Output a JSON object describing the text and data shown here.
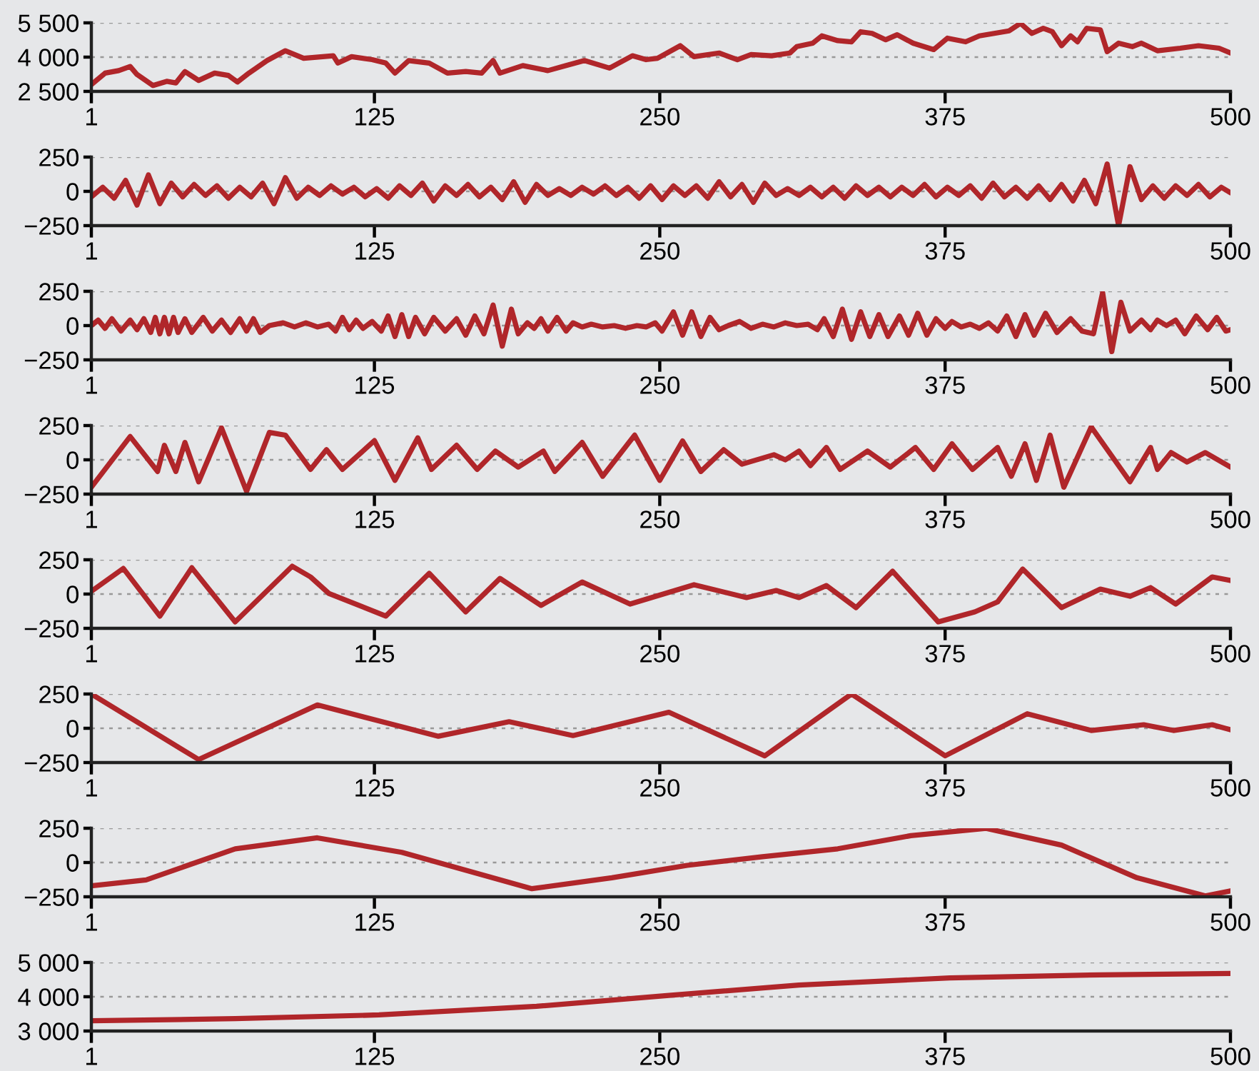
{
  "chart_data": [
    {
      "type": "line",
      "xlim": [
        1,
        500
      ],
      "xticks": [
        1,
        125,
        250,
        375,
        500
      ],
      "ylim": [
        2500,
        5500
      ],
      "yticks": [
        {
          "value": 2500,
          "label": "2 500"
        },
        {
          "value": 4000,
          "label": "4 000"
        },
        {
          "value": 5500,
          "label": "5 500"
        }
      ],
      "grid": "y",
      "line_style": "solid",
      "x": [
        1,
        7,
        13,
        18,
        21,
        28,
        34,
        38,
        42,
        48,
        55,
        61,
        65,
        70,
        78,
        86,
        94,
        107,
        109,
        115,
        124,
        130,
        134,
        140,
        149,
        157,
        165,
        172,
        177,
        180,
        190,
        201,
        209,
        217,
        228,
        238,
        244,
        249,
        259,
        265,
        276,
        284,
        290,
        299,
        307,
        310,
        317,
        321,
        328,
        334,
        338,
        343,
        349,
        354,
        361,
        370,
        376,
        384,
        390,
        403,
        408,
        413,
        418,
        422,
        426,
        430,
        433,
        437,
        443,
        446,
        451,
        457,
        461,
        468,
        478,
        486,
        495,
        500
      ],
      "series": [
        {
          "color": "#b0262a",
          "values": [
            2800,
            3300,
            3410,
            3590,
            3240,
            2760,
            2940,
            2870,
            3370,
            2980,
            3300,
            3200,
            2910,
            3300,
            3850,
            4280,
            3950,
            4060,
            3740,
            4020,
            3890,
            3740,
            3300,
            3850,
            3740,
            3300,
            3370,
            3300,
            3850,
            3300,
            3630,
            3410,
            3630,
            3850,
            3520,
            4060,
            3890,
            3950,
            4500,
            4020,
            4180,
            3890,
            4110,
            4060,
            4180,
            4460,
            4610,
            4930,
            4720,
            4670,
            5110,
            5040,
            4760,
            4980,
            4610,
            4330,
            4830,
            4670,
            4930,
            5150,
            5480,
            5040,
            5260,
            5110,
            4500,
            4930,
            4670,
            5260,
            5190,
            4240,
            4610,
            4460,
            4610,
            4280,
            4390,
            4500,
            4390,
            4180
          ]
        }
      ]
    },
    {
      "type": "line",
      "xlim": [
        1,
        500
      ],
      "xticks": [
        1,
        125,
        250,
        375,
        500
      ],
      "ylim": [
        -250,
        250
      ],
      "yticks": [
        {
          "value": -250,
          "label": "−250"
        },
        0,
        250
      ],
      "grid": "y",
      "line_style": "solid",
      "x": [
        1,
        6,
        11,
        16,
        21,
        26,
        31,
        36,
        41,
        46,
        51,
        56,
        61,
        66,
        71,
        76,
        81,
        86,
        91,
        96,
        101,
        106,
        111,
        116,
        121,
        126,
        131,
        136,
        141,
        146,
        151,
        156,
        161,
        166,
        171,
        176,
        181,
        186,
        191,
        196,
        201,
        206,
        211,
        216,
        221,
        226,
        231,
        236,
        241,
        246,
        251,
        256,
        261,
        266,
        271,
        276,
        281,
        286,
        291,
        296,
        301,
        306,
        311,
        316,
        321,
        326,
        331,
        336,
        341,
        346,
        351,
        356,
        361,
        366,
        371,
        376,
        381,
        386,
        391,
        396,
        401,
        406,
        411,
        416,
        421,
        426,
        431,
        436,
        441,
        446,
        451,
        456,
        461,
        466,
        471,
        476,
        481,
        486,
        491,
        496,
        500
      ],
      "series": [
        {
          "color": "#b0262a",
          "values": [
            -40,
            30,
            -50,
            80,
            -100,
            120,
            -90,
            60,
            -40,
            50,
            -30,
            40,
            -50,
            30,
            -40,
            60,
            -90,
            100,
            -50,
            30,
            -30,
            40,
            -20,
            30,
            -40,
            20,
            -50,
            40,
            -30,
            60,
            -70,
            40,
            -30,
            50,
            -40,
            30,
            -60,
            70,
            -80,
            50,
            -30,
            20,
            -30,
            30,
            -20,
            40,
            -30,
            30,
            -50,
            40,
            -60,
            40,
            -30,
            40,
            -50,
            70,
            -40,
            50,
            -80,
            60,
            -30,
            20,
            -30,
            30,
            -40,
            30,
            -50,
            40,
            -30,
            30,
            -40,
            30,
            -30,
            50,
            -40,
            30,
            -30,
            40,
            -50,
            60,
            -40,
            30,
            -50,
            40,
            -60,
            50,
            -70,
            80,
            -90,
            200,
            -250,
            180,
            -60,
            40,
            -50,
            40,
            -30,
            50,
            -40,
            30,
            -10
          ]
        }
      ]
    },
    {
      "type": "line",
      "xlim": [
        1,
        500
      ],
      "xticks": [
        1,
        125,
        250,
        375,
        500
      ],
      "ylim": [
        -250,
        250
      ],
      "yticks": [
        {
          "value": -250,
          "label": "−250"
        },
        0,
        250
      ],
      "grid": "y",
      "line_style": "solid",
      "x": [
        1,
        4,
        7,
        10,
        14,
        18,
        21,
        24,
        27,
        29,
        31,
        33,
        35,
        37,
        39,
        42,
        45,
        50,
        54,
        58,
        62,
        66,
        69,
        72,
        75,
        79,
        85,
        90,
        95,
        100,
        105,
        108,
        111,
        114,
        117,
        120,
        124,
        128,
        131,
        134,
        137,
        140,
        143,
        147,
        151,
        156,
        161,
        165,
        169,
        173,
        177,
        181,
        185,
        188,
        192,
        195,
        198,
        201,
        205,
        209,
        212,
        216,
        220,
        225,
        230,
        235,
        240,
        244,
        248,
        251,
        256,
        260,
        264,
        268,
        272,
        276,
        280,
        285,
        290,
        295,
        300,
        305,
        310,
        315,
        319,
        322,
        326,
        330,
        334,
        338,
        342,
        346,
        350,
        355,
        359,
        363,
        367,
        371,
        375,
        378,
        382,
        386,
        390,
        394,
        398,
        402,
        406,
        410,
        414,
        419,
        424,
        430,
        435,
        440,
        444,
        448,
        452,
        456,
        461,
        465,
        468,
        472,
        476,
        480,
        485,
        490,
        494,
        498,
        500
      ],
      "series": [
        {
          "color": "#b0262a",
          "values": [
            0,
            40,
            -20,
            50,
            -40,
            40,
            -30,
            50,
            -50,
            60,
            -60,
            60,
            -60,
            60,
            -50,
            50,
            -50,
            60,
            -40,
            40,
            -50,
            50,
            -40,
            50,
            -50,
            0,
            20,
            -10,
            20,
            -10,
            10,
            -40,
            60,
            -30,
            40,
            -20,
            30,
            -40,
            70,
            -80,
            80,
            -80,
            60,
            -60,
            60,
            -40,
            50,
            -70,
            70,
            -60,
            150,
            -150,
            120,
            -60,
            20,
            -20,
            50,
            -40,
            60,
            -40,
            20,
            -10,
            10,
            -10,
            0,
            -20,
            0,
            -10,
            20,
            -40,
            100,
            -70,
            100,
            -80,
            60,
            -30,
            0,
            30,
            -20,
            10,
            -10,
            20,
            0,
            10,
            -30,
            50,
            -80,
            120,
            -100,
            100,
            -80,
            80,
            -80,
            70,
            -70,
            90,
            -70,
            50,
            -20,
            30,
            -10,
            10,
            -20,
            20,
            -40,
            70,
            -80,
            80,
            -70,
            90,
            -50,
            50,
            -40,
            -60,
            240,
            -190,
            170,
            -40,
            40,
            -30,
            40,
            0,
            40,
            -60,
            70,
            -30,
            60,
            -40,
            -30
          ]
        }
      ]
    },
    {
      "type": "line",
      "xlim": [
        1,
        500
      ],
      "xticks": [
        1,
        125,
        250,
        375,
        500
      ],
      "ylim": [
        -250,
        250
      ],
      "yticks": [
        {
          "value": -250,
          "label": "−250"
        },
        0,
        250
      ],
      "grid": "y",
      "line_style": "solid",
      "x": [
        1,
        18,
        30,
        33,
        38,
        42,
        48,
        58,
        69,
        79,
        86,
        97,
        104,
        111,
        125,
        134,
        144,
        150,
        161,
        170,
        178,
        188,
        199,
        204,
        216,
        225,
        239,
        250,
        260,
        268,
        278,
        286,
        300,
        305,
        311,
        316,
        323,
        329,
        341,
        351,
        362,
        370,
        378,
        387,
        398,
        404,
        410,
        415,
        421,
        427,
        439,
        456,
        465,
        468,
        474,
        481,
        489,
        500
      ],
      "series": [
        {
          "color": "#b0262a",
          "values": [
            -200,
            170,
            -85,
            106,
            -85,
            127,
            -160,
            233,
            -230,
            200,
            180,
            -70,
            74,
            -70,
            140,
            -150,
            160,
            -70,
            106,
            -70,
            64,
            -53,
            64,
            -85,
            127,
            -120,
            180,
            -150,
            138,
            -85,
            74,
            -32,
            37,
            0,
            64,
            -42,
            90,
            -70,
            64,
            -53,
            90,
            -70,
            117,
            -70,
            90,
            -120,
            117,
            -150,
            180,
            -200,
            240,
            -160,
            90,
            -70,
            53,
            -16,
            53,
            -53
          ]
        }
      ]
    },
    {
      "type": "line",
      "xlim": [
        1,
        500
      ],
      "xticks": [
        1,
        125,
        250,
        375,
        500
      ],
      "ylim": [
        -250,
        250
      ],
      "yticks": [
        {
          "value": -250,
          "label": "−250"
        },
        0,
        250
      ],
      "grid": "y",
      "line_style": "solid",
      "x": [
        1,
        15,
        31,
        45,
        64,
        89,
        97,
        105,
        130,
        149,
        165,
        180,
        198,
        216,
        237,
        265,
        288,
        301,
        311,
        323,
        336,
        352,
        372,
        388,
        398,
        409,
        426,
        443,
        456,
        465,
        476,
        492,
        500
      ],
      "series": [
        {
          "color": "#b0262a",
          "values": [
            20,
            187,
            -161,
            192,
            -203,
            203,
            125,
            5,
            -161,
            151,
            -130,
            114,
            -83,
            88,
            -73,
            68,
            -26,
            26,
            -26,
            62,
            -99,
            166,
            -203,
            -130,
            -57,
            182,
            -99,
            36,
            -16,
            47,
            -73,
            125,
            99
          ]
        }
      ]
    },
    {
      "type": "line",
      "xlim": [
        1,
        500
      ],
      "xticks": [
        1,
        125,
        250,
        375,
        500
      ],
      "ylim": [
        -250,
        250
      ],
      "yticks": [
        {
          "value": -250,
          "label": "−250"
        },
        0,
        250
      ],
      "grid": "y",
      "line_style": "solid",
      "x": [
        1,
        48,
        100,
        153,
        184,
        212,
        254,
        296,
        334,
        375,
        411,
        439,
        462,
        475,
        492,
        500
      ],
      "series": [
        {
          "color": "#b0262a",
          "values": [
            250,
            -228,
            170,
            -58,
            48,
            -53,
            117,
            -201,
            250,
            -201,
            106,
            -16,
            26,
            -16,
            26,
            -11
          ]
        }
      ]
    },
    {
      "type": "line",
      "xlim": [
        1,
        500
      ],
      "xticks": [
        1,
        125,
        250,
        375,
        500
      ],
      "ylim": [
        -250,
        250
      ],
      "yticks": [
        {
          "value": -250,
          "label": "−250"
        },
        0,
        250
      ],
      "grid": "y",
      "line_style": "solid",
      "x": [
        1,
        25,
        64,
        100,
        137,
        194,
        229,
        262,
        295,
        328,
        360,
        393,
        426,
        459,
        489,
        500
      ],
      "series": [
        {
          "color": "#b0262a",
          "values": [
            -170,
            -127,
            100,
            180,
            74,
            -191,
            -111,
            -21,
            42,
            100,
            196,
            249,
            127,
            -111,
            -244,
            -207
          ]
        }
      ]
    },
    {
      "type": "line",
      "xlim": [
        1,
        500
      ],
      "xticks": [
        1,
        125,
        250,
        375,
        500
      ],
      "ylim": [
        3000,
        5000
      ],
      "yticks": [
        {
          "value": 3000,
          "label": "3 000"
        },
        {
          "value": 4000,
          "label": "4 000"
        },
        {
          "value": 5000,
          "label": "5 000"
        }
      ],
      "grid": "y",
      "line_style": "solid",
      "x": [
        1,
        64,
        127,
        196,
        254,
        311,
        377,
        443,
        500
      ],
      "series": [
        {
          "color": "#b0262a",
          "values": [
            3300,
            3360,
            3470,
            3720,
            4040,
            4340,
            4550,
            4640,
            4680
          ]
        }
      ]
    }
  ]
}
